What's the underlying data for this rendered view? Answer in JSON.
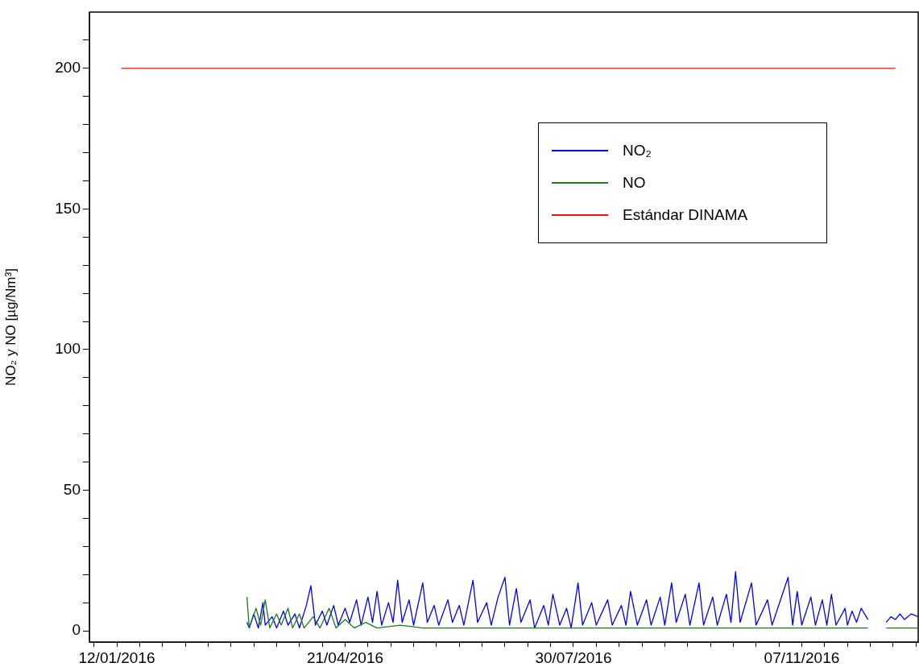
{
  "chart_data": {
    "type": "line",
    "ylabel": "NO₂ y NO [µg/Nm³]",
    "legend": "top right",
    "xlim": [
      "2015-12-31",
      "2016-12-28"
    ],
    "ylim": [
      -4,
      220
    ],
    "xticks": [
      {
        "value": "2016-01-02",
        "label": null
      },
      {
        "value": "2016-01-12",
        "label": "12/01/2016"
      },
      {
        "value": "2016-01-22",
        "label": null
      },
      {
        "value": "2016-02-01",
        "label": null
      },
      {
        "value": "2016-02-11",
        "label": null
      },
      {
        "value": "2016-02-21",
        "label": null
      },
      {
        "value": "2016-03-02",
        "label": null
      },
      {
        "value": "2016-03-12",
        "label": null
      },
      {
        "value": "2016-03-22",
        "label": null
      },
      {
        "value": "2016-04-01",
        "label": null
      },
      {
        "value": "2016-04-11",
        "label": null
      },
      {
        "value": "2016-04-21",
        "label": "21/04/2016"
      },
      {
        "value": "2016-05-01",
        "label": null
      },
      {
        "value": "2016-05-11",
        "label": null
      },
      {
        "value": "2016-05-21",
        "label": null
      },
      {
        "value": "2016-05-31",
        "label": null
      },
      {
        "value": "2016-06-10",
        "label": null
      },
      {
        "value": "2016-06-20",
        "label": null
      },
      {
        "value": "2016-06-30",
        "label": null
      },
      {
        "value": "2016-07-10",
        "label": null
      },
      {
        "value": "2016-07-20",
        "label": null
      },
      {
        "value": "2016-07-30",
        "label": "30/07/2016"
      },
      {
        "value": "2016-08-09",
        "label": null
      },
      {
        "value": "2016-08-19",
        "label": null
      },
      {
        "value": "2016-08-29",
        "label": null
      },
      {
        "value": "2016-09-08",
        "label": null
      },
      {
        "value": "2016-09-18",
        "label": null
      },
      {
        "value": "2016-09-28",
        "label": null
      },
      {
        "value": "2016-10-08",
        "label": null
      },
      {
        "value": "2016-10-18",
        "label": null
      },
      {
        "value": "2016-10-28",
        "label": null
      },
      {
        "value": "2016-11-07",
        "label": "07/11/2016"
      },
      {
        "value": "2016-11-17",
        "label": null
      },
      {
        "value": "2016-11-27",
        "label": null
      },
      {
        "value": "2016-12-07",
        "label": null
      },
      {
        "value": "2016-12-17",
        "label": null
      },
      {
        "value": "2016-12-27",
        "label": null
      }
    ],
    "yticks": [
      0,
      {
        "value": 10,
        "label": null
      },
      {
        "value": 20,
        "label": null
      },
      {
        "value": 30,
        "label": null
      },
      {
        "value": 40,
        "label": null
      },
      50,
      {
        "value": 60,
        "label": null
      },
      {
        "value": 70,
        "label": null
      },
      {
        "value": 80,
        "label": null
      },
      {
        "value": 90,
        "label": null
      },
      100,
      {
        "value": 110,
        "label": null
      },
      {
        "value": 120,
        "label": null
      },
      {
        "value": 130,
        "label": null
      },
      {
        "value": 140,
        "label": null
      },
      150,
      {
        "value": 160,
        "label": null
      },
      {
        "value": 170,
        "label": null
      },
      {
        "value": 180,
        "label": null
      },
      {
        "value": 190,
        "label": null
      },
      200,
      {
        "value": 210,
        "label": null
      }
    ],
    "series": [
      {
        "name": "NO₂",
        "color": "#0000ee",
        "x": [
          "2016-03-09",
          "2016-03-10",
          "2016-03-12",
          "2016-03-14",
          "2016-03-16",
          "2016-03-17",
          "2016-03-20",
          "2016-03-22",
          "2016-03-25",
          "2016-03-27",
          "2016-03-30",
          "2016-04-01",
          "2016-04-04",
          "2016-04-06",
          "2016-04-08",
          "2016-04-11",
          "2016-04-13",
          "2016-04-16",
          "2016-04-18",
          "2016-04-21",
          "2016-04-23",
          "2016-04-26",
          "2016-04-28",
          "2016-05-01",
          "2016-05-03",
          "2016-05-05",
          "2016-05-07",
          "2016-05-10",
          "2016-05-12",
          "2016-05-14",
          "2016-05-16",
          "2016-05-19",
          "2016-05-21",
          "2016-05-25",
          "2016-05-27",
          "2016-05-30",
          "2016-06-01",
          "2016-06-05",
          "2016-06-07",
          "2016-06-10",
          "2016-06-12",
          "2016-06-16",
          "2016-06-18",
          "2016-06-22",
          "2016-06-24",
          "2016-06-27",
          "2016-06-30",
          "2016-07-02",
          "2016-07-05",
          "2016-07-07",
          "2016-07-11",
          "2016-07-13",
          "2016-07-17",
          "2016-07-19",
          "2016-07-21",
          "2016-07-24",
          "2016-07-27",
          "2016-07-29",
          "2016-08-01",
          "2016-08-03",
          "2016-08-07",
          "2016-08-09",
          "2016-08-14",
          "2016-08-16",
          "2016-08-20",
          "2016-08-22",
          "2016-08-24",
          "2016-08-27",
          "2016-08-31",
          "2016-09-02",
          "2016-09-06",
          "2016-09-08",
          "2016-09-11",
          "2016-09-13",
          "2016-09-17",
          "2016-09-19",
          "2016-09-23",
          "2016-09-25",
          "2016-09-29",
          "2016-10-01",
          "2016-10-05",
          "2016-10-07",
          "2016-10-09",
          "2016-10-11",
          "2016-10-16",
          "2016-10-18",
          "2016-10-23",
          "2016-10-25",
          "2016-11-01",
          "2016-11-03",
          "2016-11-05",
          "2016-11-07",
          "2016-11-11",
          "2016-11-13",
          "2016-11-16",
          "2016-11-18",
          "2016-11-20",
          "2016-11-22",
          "2016-11-26",
          "2016-11-27",
          "2016-11-29",
          "2016-12-01",
          "2016-12-03",
          "2016-12-06",
          "2016-12-10",
          "2016-12-14",
          "2016-12-16",
          "2016-12-18",
          "2016-12-20",
          "2016-12-22",
          "2016-12-25",
          "2016-12-28"
        ],
        "values": [
          3,
          1,
          6,
          1,
          10,
          2,
          5,
          1,
          7,
          2,
          6,
          1,
          9,
          16,
          2,
          7,
          2,
          9,
          2,
          8,
          3,
          11,
          2,
          12,
          3,
          14,
          2,
          10,
          3,
          18,
          3,
          11,
          2,
          17,
          3,
          9,
          2,
          11,
          3,
          9,
          2,
          18,
          3,
          10,
          2,
          12,
          19,
          2,
          15,
          3,
          11,
          1,
          9,
          2,
          13,
          2,
          8,
          1,
          17,
          2,
          10,
          2,
          11,
          2,
          9,
          2,
          14,
          2,
          11,
          2,
          12,
          2,
          17,
          3,
          13,
          2,
          17,
          2,
          12,
          2,
          13,
          3,
          21,
          3,
          17,
          2,
          11,
          2,
          19,
          2,
          14,
          2,
          12,
          2,
          11,
          2,
          13,
          2,
          8,
          2,
          7,
          3,
          8,
          4,
          null,
          3,
          5,
          4,
          6,
          4,
          6,
          5
        ]
      },
      {
        "name": "NO",
        "color": "#1e7b1e",
        "x": [
          "2016-03-09",
          "2016-03-10",
          "2016-03-13",
          "2016-03-15",
          "2016-03-17",
          "2016-03-19",
          "2016-03-22",
          "2016-03-24",
          "2016-03-27",
          "2016-03-29",
          "2016-04-01",
          "2016-04-03",
          "2016-04-07",
          "2016-04-10",
          "2016-04-14",
          "2016-04-17",
          "2016-04-21",
          "2016-04-25",
          "2016-04-30",
          "2016-05-05",
          "2016-05-15",
          "2016-05-25",
          "2016-06-05",
          "2016-06-15",
          "2016-06-25",
          "2016-07-05",
          "2016-07-15",
          "2016-07-25",
          "2016-08-04",
          "2016-08-14",
          "2016-08-24",
          "2016-09-03",
          "2016-09-13",
          "2016-09-23",
          "2016-10-03",
          "2016-10-13",
          "2016-10-23",
          "2016-11-02",
          "2016-11-12",
          "2016-11-22",
          "2016-12-06",
          "2016-12-10",
          "2016-12-14",
          "2016-12-28"
        ],
        "values": [
          12,
          1,
          8,
          2,
          11,
          1,
          6,
          2,
          8,
          1,
          6,
          1,
          5,
          1,
          8,
          1,
          4,
          1,
          3,
          1,
          2,
          1,
          1,
          1,
          1,
          1,
          1,
          1,
          1,
          1,
          1,
          1,
          1,
          1,
          1,
          1,
          1,
          1,
          1,
          1,
          1,
          null,
          1,
          1
        ]
      },
      {
        "name": "Estándar DINAMA",
        "color": "#ee1111",
        "x": [
          "2016-01-14",
          "2016-12-18"
        ],
        "values": [
          200,
          200
        ]
      }
    ]
  }
}
